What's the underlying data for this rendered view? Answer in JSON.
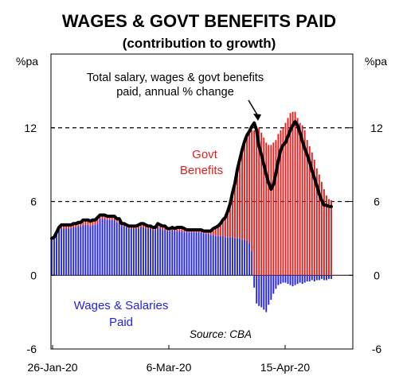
{
  "chart_data": {
    "type": "bar",
    "title": "WAGES & GOVT BENEFITS PAID",
    "subtitle": "(contribution to growth)",
    "ylabel_left": "%pa",
    "ylabel_right": "%pa",
    "ylim": [
      -6,
      18
    ],
    "yticks": [
      "12",
      "6",
      "0",
      "-6"
    ],
    "xticks": [
      "26-Jan-20",
      "6-Mar-20",
      "15-Apr-20"
    ],
    "dashed_lines": [
      12,
      6
    ],
    "annotations": {
      "line_label_1": "Total salary, wages & govt benefits",
      "line_label_2": "paid, annual % change",
      "govt_label_1": "Govt",
      "govt_label_2": "Benefits",
      "wages_label_1": "Wages & Salaries",
      "wages_label_2": "Paid",
      "source": "Source: CBA"
    },
    "colors": {
      "wages": "#2323e0",
      "govt": "#e61e1e",
      "line": "#000000"
    },
    "series": [
      {
        "name": "Wages & Salaries Paid",
        "values": [
          3.0,
          3.1,
          3.5,
          3.7,
          3.8,
          3.8,
          3.8,
          3.8,
          3.8,
          3.9,
          3.9,
          4.0,
          4.0,
          4.1,
          4.1,
          4.1,
          4.0,
          4.1,
          4.1,
          4.2,
          4.6,
          4.6,
          4.6,
          4.5,
          4.5,
          4.5,
          4.5,
          4.3,
          4.3,
          4.0,
          4.0,
          3.9,
          3.8,
          3.8,
          3.8,
          3.8,
          3.8,
          3.9,
          3.9,
          3.8,
          3.8,
          3.8,
          3.7,
          3.7,
          3.9,
          3.8,
          3.7,
          3.7,
          3.6,
          3.6,
          3.7,
          3.6,
          3.6,
          3.6,
          3.6,
          3.5,
          3.5,
          3.5,
          3.5,
          3.5,
          3.5,
          3.5,
          3.5,
          3.4,
          3.4,
          3.4,
          3.3,
          3.3,
          3.2,
          3.2,
          3.2,
          3.2,
          3.1,
          3.1,
          3.1,
          3.1,
          3.0,
          3.0,
          3.0,
          2.9,
          2.9,
          2.8,
          2.6,
          2.0,
          -1.0,
          -2.3,
          -2.5,
          -2.6,
          -2.8,
          -3.0,
          -2.4,
          -2.0,
          -1.5,
          -1.1,
          -0.8,
          -0.7,
          -0.6,
          -0.6,
          -0.7,
          -0.8,
          -0.9,
          -0.8,
          -0.7,
          -0.6,
          -0.7,
          -0.6,
          -0.5,
          -0.5,
          -0.4,
          -0.5,
          -0.4,
          -0.4,
          -0.3,
          -0.4,
          -0.4,
          -0.3,
          -0.3
        ]
      },
      {
        "name": "Govt Benefits",
        "values": [
          0,
          0,
          0,
          0.2,
          0.3,
          0.3,
          0.3,
          0.3,
          0.3,
          0.3,
          0.3,
          0.3,
          0.3,
          0.4,
          0.4,
          0.4,
          0.4,
          0.4,
          0.4,
          0.5,
          0.3,
          0.3,
          0.3,
          0.3,
          0.3,
          0.3,
          0.3,
          0.3,
          0.3,
          0.2,
          0.2,
          0.2,
          0.2,
          0.2,
          0.2,
          0.2,
          0.3,
          0.3,
          0.3,
          0.3,
          0.2,
          0.2,
          0.2,
          0.2,
          0.3,
          0.3,
          0.3,
          0.3,
          0.2,
          0.2,
          0.2,
          0.2,
          0.3,
          0.3,
          0.3,
          0.3,
          0.2,
          0.2,
          0.2,
          0.2,
          0.2,
          0.2,
          0.2,
          0.2,
          0.2,
          0.2,
          0.3,
          0.5,
          0.7,
          0.8,
          1.0,
          1.3,
          1.6,
          2.1,
          2.7,
          3.6,
          4.5,
          5.6,
          6.4,
          7.3,
          8.0,
          8.6,
          9.1,
          9.8,
          11.8,
          12.0,
          12.0,
          11.6,
          11.2,
          10.8,
          10.6,
          10.6,
          10.8,
          11.0,
          11.5,
          11.8,
          12.0,
          12.4,
          12.8,
          13.2,
          13.3,
          13.3,
          12.8,
          12.4,
          12.2,
          11.8,
          11.0,
          10.5,
          10.0,
          9.4,
          8.7,
          8.2,
          7.6,
          7.0,
          6.5,
          6.2,
          6.1
        ]
      },
      {
        "name": "Total salary, wages & govt benefits paid, annual % change",
        "values": [
          3.0,
          3.1,
          3.5,
          3.9,
          4.1,
          4.1,
          4.1,
          4.1,
          4.1,
          4.2,
          4.2,
          4.3,
          4.3,
          4.5,
          4.5,
          4.5,
          4.4,
          4.5,
          4.5,
          4.7,
          4.9,
          4.9,
          4.9,
          4.8,
          4.8,
          4.8,
          4.8,
          4.6,
          4.6,
          4.2,
          4.2,
          4.1,
          4.0,
          4.0,
          4.0,
          4.0,
          4.1,
          4.2,
          4.2,
          4.1,
          4.0,
          4.0,
          3.9,
          3.9,
          4.2,
          4.1,
          4.0,
          4.0,
          3.8,
          3.8,
          3.9,
          3.8,
          3.9,
          3.9,
          3.9,
          3.8,
          3.7,
          3.7,
          3.7,
          3.7,
          3.7,
          3.7,
          3.7,
          3.6,
          3.6,
          3.6,
          3.6,
          3.8,
          3.9,
          4.0,
          4.2,
          4.5,
          4.7,
          5.2,
          5.8,
          6.7,
          7.5,
          8.6,
          9.4,
          10.2,
          10.9,
          11.4,
          11.7,
          12.1,
          12.4,
          11.8,
          10.5,
          9.8,
          9.0,
          8.2,
          7.5,
          7.0,
          7.4,
          8.3,
          9.3,
          10.2,
          10.6,
          10.8,
          11.3,
          11.8,
          12.2,
          12.5,
          12.2,
          11.6,
          10.9,
          10.3,
          9.8,
          9.2,
          8.5,
          7.9,
          7.3,
          6.6,
          6.1,
          5.7,
          5.7,
          5.6,
          5.6
        ]
      }
    ]
  }
}
